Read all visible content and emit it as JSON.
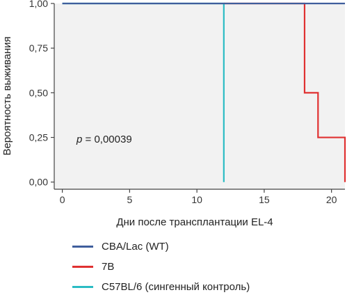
{
  "chart_data": {
    "type": "line",
    "step": true,
    "xlabel": "Дни после трансплантации EL-4",
    "ylabel": "Вероятность выживания",
    "xlim": [
      -0.6,
      21
    ],
    "ylim": [
      -0.04,
      1.0
    ],
    "xticks": [
      0,
      5,
      10,
      15,
      20
    ],
    "yticks": [
      0.0,
      0.25,
      0.5,
      0.75,
      1.0
    ],
    "xtick_labels": [
      "0",
      "5",
      "10",
      "15",
      "20"
    ],
    "ytick_labels": [
      "0,00",
      "0,25",
      "0,50",
      "0,75",
      "1,00"
    ],
    "annotation": {
      "italic": "p",
      "rest": " = 0,00039"
    },
    "legend_position": "bottom",
    "series": [
      {
        "name": "CBA/Lac (WT)",
        "color": "#3f5e9c",
        "x": [
          0,
          21
        ],
        "y": [
          1.0,
          1.0
        ]
      },
      {
        "name": "7B",
        "color": "#e03131",
        "x": [
          12,
          18,
          18,
          19,
          19,
          21,
          21
        ],
        "y": [
          1.0,
          1.0,
          0.5,
          0.5,
          0.25,
          0.25,
          0.0
        ]
      },
      {
        "name": "C57BL/6 (сингенный контроль)",
        "color": "#2bbcc4",
        "x": [
          0,
          12,
          12
        ],
        "y": [
          1.0,
          1.0,
          0.0
        ]
      }
    ]
  }
}
